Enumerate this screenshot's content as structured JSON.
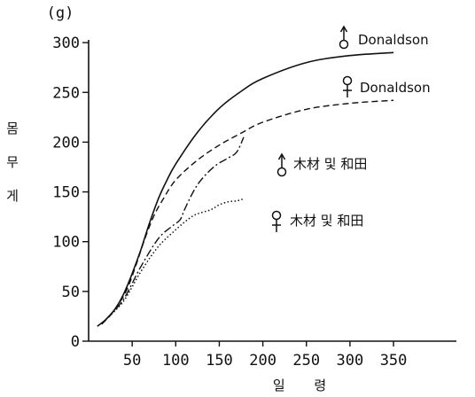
{
  "chart_data": {
    "type": "line",
    "title": "",
    "unit_label": "(g)",
    "ylabel": "몸무게",
    "xlabel": "일 령",
    "xlim": [
      0,
      350
    ],
    "ylim": [
      0,
      300
    ],
    "x_ticks": [
      50,
      100,
      150,
      200,
      250,
      300,
      350
    ],
    "y_ticks": [
      0,
      50,
      100,
      150,
      200,
      250,
      300
    ],
    "grid": false,
    "legend_placement": "inline labels beside curve ends",
    "series": [
      {
        "name": "Donaldson",
        "sex": "male",
        "style": "solid",
        "x": [
          10,
          20,
          30,
          40,
          50,
          60,
          70,
          80,
          90,
          100,
          125,
          150,
          175,
          200,
          250,
          300,
          350
        ],
        "y": [
          15,
          22,
          32,
          47,
          68,
          92,
          119,
          143,
          162,
          178,
          210,
          234,
          251,
          264,
          280,
          287,
          290
        ]
      },
      {
        "name": "Donaldson",
        "sex": "female",
        "style": "dashed",
        "x": [
          15,
          25,
          35,
          45,
          55,
          65,
          75,
          85,
          100,
          125,
          150,
          175,
          200,
          250,
          300,
          350
        ],
        "y": [
          17,
          26,
          38,
          54,
          78,
          104,
          126,
          142,
          162,
          182,
          197,
          209,
          220,
          233,
          239,
          242
        ]
      },
      {
        "name": "木材 및 和田",
        "sex": "male",
        "style": "dash-dot",
        "x": [
          20,
          40,
          60,
          80,
          95,
          105,
          110,
          120,
          130,
          145,
          160,
          170,
          178
        ],
        "y": [
          22,
          42,
          75,
          103,
          115,
          122,
          132,
          150,
          163,
          176,
          184,
          190,
          205
        ]
      },
      {
        "name": "木材 및 和田",
        "sex": "female",
        "style": "dotted",
        "x": [
          20,
          40,
          60,
          80,
          100,
          115,
          125,
          140,
          150,
          160,
          170,
          178
        ],
        "y": [
          22,
          40,
          70,
          95,
          112,
          123,
          128,
          132,
          137,
          140,
          141,
          143
        ]
      }
    ]
  }
}
